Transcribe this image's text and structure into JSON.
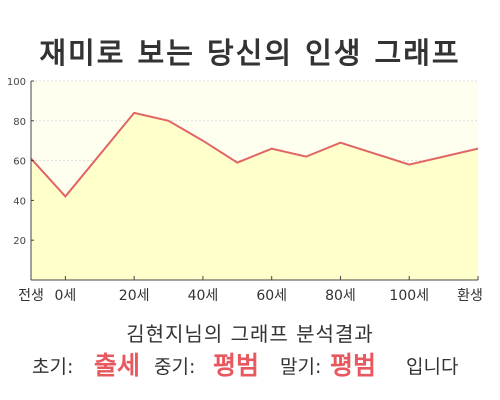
{
  "title": "재미로 보는 당신의 인생 그래프",
  "subtitle": "김현지님의 그래프 분석결과",
  "result": {
    "early_label": "초기:",
    "early_value": "출세",
    "mid_label": "중기:",
    "mid_value": "평범",
    "late_label": "말기:",
    "late_value": "평범",
    "suffix": "입니다"
  },
  "colors": {
    "line": "#e06666",
    "fill": "#ffffcc",
    "plot_bg": "#fffff0",
    "highlight": "#e8585f"
  },
  "chart_data": {
    "type": "area",
    "title": "",
    "xlabel": "",
    "ylabel": "",
    "ylim": [
      0,
      100
    ],
    "yticks": [
      20,
      40,
      60,
      80,
      100
    ],
    "xticks": [
      {
        "x": -10,
        "label": "전생"
      },
      {
        "x": 0,
        "label": "0세"
      },
      {
        "x": 20,
        "label": "20세"
      },
      {
        "x": 40,
        "label": "40세"
      },
      {
        "x": 60,
        "label": "60세"
      },
      {
        "x": 80,
        "label": "80세"
      },
      {
        "x": 100,
        "label": "100세"
      },
      {
        "x": 120,
        "label": "환생"
      }
    ],
    "xlim": [
      -10,
      120
    ],
    "grid": true,
    "points": [
      {
        "x": -10,
        "y": 61
      },
      {
        "x": 0,
        "y": 42
      },
      {
        "x": 20,
        "y": 84
      },
      {
        "x": 30,
        "y": 80
      },
      {
        "x": 40,
        "y": 70
      },
      {
        "x": 50,
        "y": 59
      },
      {
        "x": 60,
        "y": 66
      },
      {
        "x": 70,
        "y": 62
      },
      {
        "x": 80,
        "y": 69
      },
      {
        "x": 100,
        "y": 58
      },
      {
        "x": 120,
        "y": 66
      }
    ]
  }
}
